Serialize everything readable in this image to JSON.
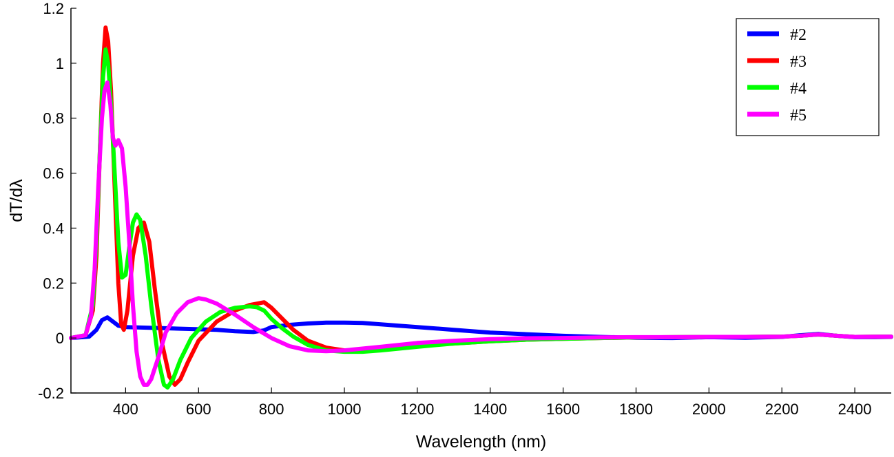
{
  "chart_data": {
    "type": "line",
    "title": "",
    "xlabel": "Wavelength (nm)",
    "ylabel": "dT/dλ",
    "xlim": [
      250,
      2500
    ],
    "ylim": [
      -0.2,
      1.2
    ],
    "x_ticks": [
      400,
      600,
      800,
      1000,
      1200,
      1400,
      1600,
      1800,
      2000,
      2200,
      2400
    ],
    "y_ticks": [
      -0.2,
      0,
      0.2,
      0.4,
      0.6,
      0.8,
      1,
      1.2
    ],
    "x_tick_labels": [
      "400",
      "600",
      "800",
      "1000",
      "1200",
      "1400",
      "1600",
      "1800",
      "2000",
      "2200",
      "2400"
    ],
    "y_tick_labels": [
      "-0.2",
      "0",
      "0.2",
      "0.4",
      "0.6",
      "0.8",
      "1",
      "1.2"
    ],
    "grid": false,
    "legend_position": "top-right",
    "series": [
      {
        "name": "#2",
        "color": "#0000ff",
        "x": [
          250,
          300,
          320,
          335,
          350,
          365,
          380,
          400,
          450,
          500,
          550,
          600,
          650,
          700,
          750,
          780,
          800,
          850,
          900,
          950,
          1000,
          1050,
          1100,
          1150,
          1200,
          1300,
          1400,
          1500,
          1600,
          1700,
          1800,
          1900,
          2000,
          2100,
          2200,
          2250,
          2300,
          2350,
          2400,
          2450,
          2500
        ],
        "y": [
          0.0,
          0.005,
          0.03,
          0.065,
          0.075,
          0.06,
          0.045,
          0.04,
          0.038,
          0.036,
          0.034,
          0.032,
          0.03,
          0.025,
          0.022,
          0.028,
          0.04,
          0.048,
          0.053,
          0.056,
          0.056,
          0.055,
          0.05,
          0.045,
          0.04,
          0.03,
          0.02,
          0.014,
          0.008,
          0.004,
          0.001,
          0.0,
          0.003,
          0.001,
          0.004,
          0.01,
          0.015,
          0.008,
          0.003,
          0.003,
          0.004
        ]
      },
      {
        "name": "#3",
        "color": "#ff0000",
        "x": [
          250,
          290,
          310,
          320,
          330,
          338,
          345,
          352,
          360,
          370,
          380,
          388,
          395,
          405,
          420,
          435,
          450,
          465,
          480,
          500,
          520,
          535,
          550,
          570,
          600,
          650,
          700,
          740,
          760,
          780,
          800,
          830,
          860,
          900,
          950,
          1000,
          1050,
          1100,
          1200,
          1300,
          1400,
          1500,
          1600,
          1700,
          1800,
          1900,
          2000,
          2100,
          2200,
          2250,
          2300,
          2350,
          2400,
          2500
        ],
        "y": [
          0.0,
          0.01,
          0.1,
          0.3,
          0.7,
          1.0,
          1.13,
          1.08,
          0.9,
          0.55,
          0.2,
          0.05,
          0.03,
          0.1,
          0.3,
          0.4,
          0.42,
          0.35,
          0.18,
          -0.02,
          -0.14,
          -0.17,
          -0.15,
          -0.09,
          -0.01,
          0.06,
          0.1,
          0.12,
          0.125,
          0.13,
          0.11,
          0.07,
          0.03,
          -0.01,
          -0.035,
          -0.045,
          -0.045,
          -0.04,
          -0.028,
          -0.02,
          -0.012,
          -0.006,
          -0.003,
          0.0,
          0.002,
          0.003,
          0.004,
          0.004,
          0.005,
          0.008,
          0.013,
          0.008,
          0.004,
          0.005
        ]
      },
      {
        "name": "#4",
        "color": "#00ff00",
        "x": [
          250,
          290,
          310,
          320,
          330,
          338,
          345,
          352,
          360,
          370,
          380,
          390,
          400,
          410,
          420,
          430,
          440,
          455,
          470,
          490,
          505,
          515,
          530,
          550,
          580,
          620,
          660,
          700,
          740,
          760,
          780,
          800,
          830,
          860,
          900,
          950,
          1000,
          1050,
          1100,
          1200,
          1300,
          1400,
          1500,
          1600,
          1700,
          1800,
          1900,
          2000,
          2100,
          2200,
          2250,
          2300,
          2350,
          2400,
          2500
        ],
        "y": [
          0.0,
          0.01,
          0.12,
          0.35,
          0.7,
          0.95,
          1.05,
          1.0,
          0.85,
          0.6,
          0.35,
          0.22,
          0.23,
          0.33,
          0.42,
          0.45,
          0.43,
          0.3,
          0.12,
          -0.08,
          -0.17,
          -0.18,
          -0.15,
          -0.08,
          0.0,
          0.06,
          0.095,
          0.11,
          0.115,
          0.112,
          0.1,
          0.07,
          0.035,
          0.005,
          -0.025,
          -0.045,
          -0.05,
          -0.05,
          -0.045,
          -0.032,
          -0.02,
          -0.012,
          -0.006,
          -0.003,
          0.0,
          0.002,
          0.003,
          0.004,
          0.004,
          0.005,
          0.008,
          0.013,
          0.008,
          0.004,
          0.005
        ]
      },
      {
        "name": "#5",
        "color": "#ff00ff",
        "x": [
          250,
          290,
          305,
          315,
          325,
          335,
          342,
          350,
          358,
          365,
          372,
          380,
          390,
          400,
          410,
          420,
          430,
          440,
          450,
          460,
          470,
          490,
          510,
          540,
          570,
          600,
          620,
          650,
          700,
          750,
          800,
          850,
          900,
          950,
          1000,
          1100,
          1200,
          1300,
          1400,
          1500,
          1600,
          1700,
          1800,
          1900,
          2000,
          2100,
          2200,
          2250,
          2300,
          2350,
          2400,
          2500
        ],
        "y": [
          0.0,
          0.01,
          0.08,
          0.25,
          0.55,
          0.8,
          0.9,
          0.93,
          0.85,
          0.73,
          0.7,
          0.72,
          0.69,
          0.55,
          0.35,
          0.12,
          -0.05,
          -0.14,
          -0.17,
          -0.17,
          -0.15,
          -0.07,
          0.02,
          0.09,
          0.13,
          0.145,
          0.14,
          0.125,
          0.085,
          0.04,
          0.0,
          -0.03,
          -0.045,
          -0.048,
          -0.045,
          -0.032,
          -0.018,
          -0.01,
          -0.004,
          -0.001,
          0.0,
          0.002,
          0.003,
          0.003,
          0.004,
          0.004,
          0.005,
          0.008,
          0.013,
          0.008,
          0.004,
          0.005
        ]
      }
    ]
  }
}
